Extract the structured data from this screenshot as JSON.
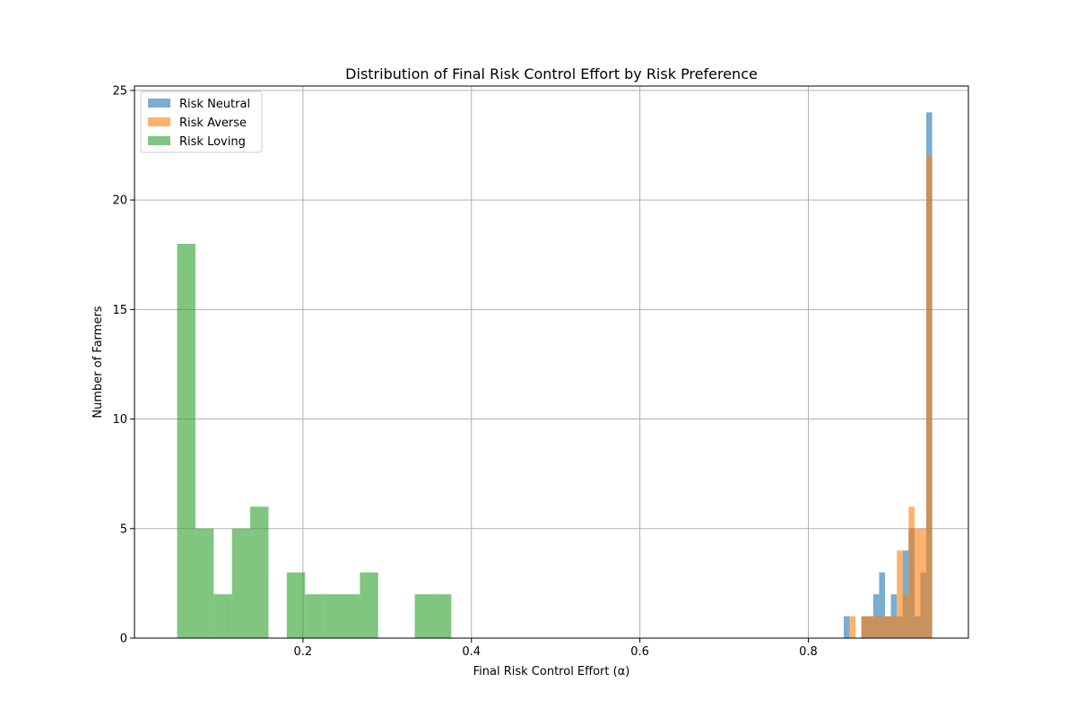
{
  "chart_data": {
    "type": "bar",
    "title": "Distribution of Final Risk Control Effort by Risk Preference",
    "xlabel": "Final Risk Control Effort (α)",
    "ylabel": "Number of Farmers",
    "xlim": [
      0.0,
      0.99
    ],
    "ylim": [
      0,
      25.2
    ],
    "xticks": [
      0.2,
      0.4,
      0.6,
      0.8
    ],
    "xtick_labels": [
      "0.2",
      "0.4",
      "0.6",
      "0.8"
    ],
    "yticks": [
      0,
      5,
      10,
      15,
      20,
      25
    ],
    "ytick_labels": [
      "0",
      "5",
      "10",
      "15",
      "20",
      "25"
    ],
    "grid": true,
    "legend_position": "top-left",
    "series": [
      {
        "name": "Risk Neutral",
        "color": "#1f77b4",
        "bin_edges": [
          0.842,
          0.849,
          0.856,
          0.863,
          0.87,
          0.877,
          0.884,
          0.891,
          0.898,
          0.905,
          0.912,
          0.919,
          0.926,
          0.933,
          0.94,
          0.947
        ],
        "values": [
          1,
          0,
          0,
          1,
          1,
          2,
          3,
          1,
          2,
          1,
          4,
          5,
          1,
          3,
          24
        ]
      },
      {
        "name": "Risk Averse",
        "color": "#ff7f0e",
        "bin_edges": [
          0.849,
          0.856,
          0.863,
          0.87,
          0.877,
          0.884,
          0.891,
          0.898,
          0.905,
          0.912,
          0.919,
          0.926,
          0.933,
          0.94,
          0.947
        ],
        "values": [
          1,
          0,
          1,
          1,
          1,
          1,
          1,
          1,
          4,
          2,
          6,
          5,
          5,
          22
        ]
      },
      {
        "name": "Risk Loving",
        "color": "#2ca02c",
        "bin_edges": [
          0.0506,
          0.0723,
          0.094,
          0.1157,
          0.1374,
          0.1591,
          0.1808,
          0.2025,
          0.2242,
          0.2459,
          0.2676,
          0.2893,
          0.311,
          0.3327,
          0.3544,
          0.3761
        ],
        "values": [
          18,
          5,
          2,
          5,
          6,
          0,
          3,
          2,
          2,
          2,
          3,
          0,
          0,
          2,
          2
        ]
      }
    ]
  }
}
